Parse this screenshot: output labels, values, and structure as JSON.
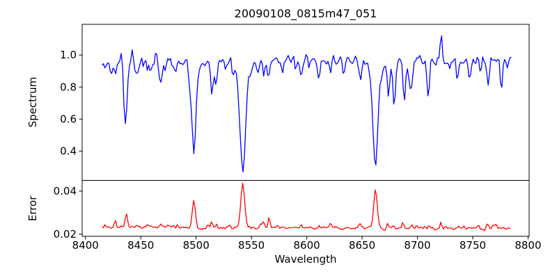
{
  "figure": {
    "title": "20090108_0815m47_051",
    "xlabel": "Wavelength",
    "background": "#ffffff",
    "axis_color": "#000000",
    "text_color": "#000000"
  },
  "x_axis": {
    "lim": [
      8397,
      8801
    ],
    "ticks": [
      8400,
      8450,
      8500,
      8550,
      8600,
      8650,
      8700,
      8750,
      8800
    ],
    "labels": [
      "8400",
      "8450",
      "8500",
      "8550",
      "8600",
      "8650",
      "8700",
      "8750",
      "8800"
    ]
  },
  "chart_data": [
    {
      "type": "line",
      "name": "spectrum",
      "ylabel": "Spectrum",
      "color": "#0000ff",
      "ylim": [
        0.217,
        1.192
      ],
      "yticks": [
        0.4,
        0.6,
        0.8,
        1.0
      ],
      "ytick_labels": [
        "0.4",
        "0.6",
        "0.8",
        "1.0"
      ],
      "x_range": [
        8415,
        8785
      ],
      "n_points": 300,
      "seed": 81547,
      "continuum": 0.955,
      "continuum_slope": 0,
      "noise_sigma": 0.019,
      "spike_sign": -1,
      "spike_boost": 1.5,
      "absorption_lines": [
        [
          8416,
          0.04,
          3.0
        ],
        [
          8423,
          0.055,
          1.0
        ],
        [
          8427,
          0.09,
          1.0
        ],
        [
          8436,
          0.37,
          1.6
        ],
        [
          8447,
          0.06,
          1.0
        ],
        [
          8456,
          0.05,
          0.9
        ],
        [
          8468,
          0.17,
          1.3
        ],
        [
          8482,
          0.05,
          0.9
        ],
        [
          8498.0,
          0.46,
          2.0
        ],
        [
          8498.0,
          0.06,
          5.5
        ],
        [
          8514.1,
          0.15,
          1.0
        ],
        [
          8518.1,
          0.18,
          1.1
        ],
        [
          8526,
          0.06,
          0.9
        ],
        [
          8542.1,
          0.62,
          2.4
        ],
        [
          8542.1,
          0.07,
          7.0
        ],
        [
          8556,
          0.05,
          0.9
        ],
        [
          8561,
          0.1,
          1.0
        ],
        [
          8565,
          0.08,
          0.9
        ],
        [
          8578,
          0.06,
          0.9
        ],
        [
          8595,
          0.09,
          1.0
        ],
        [
          8611,
          0.1,
          1.1
        ],
        [
          8621,
          0.07,
          0.9
        ],
        [
          8634,
          0.05,
          0.9
        ],
        [
          8648,
          0.1,
          1.1
        ],
        [
          8662.1,
          0.58,
          2.2
        ],
        [
          8662.1,
          0.07,
          6.0
        ],
        [
          8674,
          0.16,
          1.1
        ],
        [
          8679,
          0.22,
          1.2
        ],
        [
          8688,
          0.24,
          1.3
        ],
        [
          8694,
          0.16,
          1.0
        ],
        [
          8710,
          0.22,
          1.1
        ],
        [
          8736,
          0.09,
          0.9
        ],
        [
          8747,
          0.12,
          1.1
        ],
        [
          8757,
          0.08,
          0.9
        ],
        [
          8764,
          0.15,
          1.1
        ],
        [
          8776,
          0.13,
          1.1
        ]
      ],
      "emission_peaks": [
        [
          8433,
          0.09,
          0.7
        ],
        [
          8442,
          0.06,
          0.8
        ],
        [
          8600,
          0.012,
          120
        ],
        [
          8721.5,
          0.16,
          0.9
        ]
      ]
    },
    {
      "type": "line",
      "name": "error",
      "ylabel": "Error",
      "color": "#ff0000",
      "ylim": [
        0.019,
        0.045
      ],
      "yticks": [
        0.02,
        0.04
      ],
      "ytick_labels": [
        "0.02",
        "0.04"
      ],
      "x_range": [
        8415,
        8784
      ],
      "n_points": 300,
      "seed": 4251,
      "continuum": 0.0233,
      "continuum_slope": -1.8e-06,
      "noise_sigma": 0.00045,
      "spike_sign": 1,
      "spike_boost": 1.5,
      "absorption_lines": [],
      "emission_peaks": [
        [
          8427,
          0.0033,
          0.8
        ],
        [
          8437,
          0.0068,
          1.1
        ],
        [
          8456,
          0.0012,
          0.8
        ],
        [
          8468,
          0.0016,
          0.9
        ],
        [
          8483,
          0.0013,
          0.8
        ],
        [
          8498,
          0.0124,
          1.4
        ],
        [
          8514,
          0.0021,
          0.8
        ],
        [
          8519,
          0.0021,
          0.8
        ],
        [
          8530,
          0.0014,
          0.8
        ],
        [
          8542.1,
          0.0204,
          1.7
        ],
        [
          8561,
          0.003,
          0.8
        ],
        [
          8566,
          0.003,
          0.8
        ],
        [
          8595,
          0.0012,
          0.8
        ],
        [
          8611,
          0.0018,
          0.8
        ],
        [
          8648,
          0.0015,
          0.9
        ],
        [
          8662.1,
          0.0178,
          1.6
        ],
        [
          8673,
          0.002,
          0.9
        ],
        [
          8687,
          0.0032,
          1.0
        ],
        [
          8695,
          0.0014,
          0.8
        ],
        [
          8710,
          0.0016,
          0.8
        ],
        [
          8721,
          0.0028,
          0.8
        ],
        [
          8742,
          0.0014,
          0.8
        ],
        [
          8755,
          0.0018,
          0.8
        ],
        [
          8763,
          0.002,
          0.8
        ],
        [
          8771,
          0.0016,
          0.8
        ]
      ]
    }
  ]
}
